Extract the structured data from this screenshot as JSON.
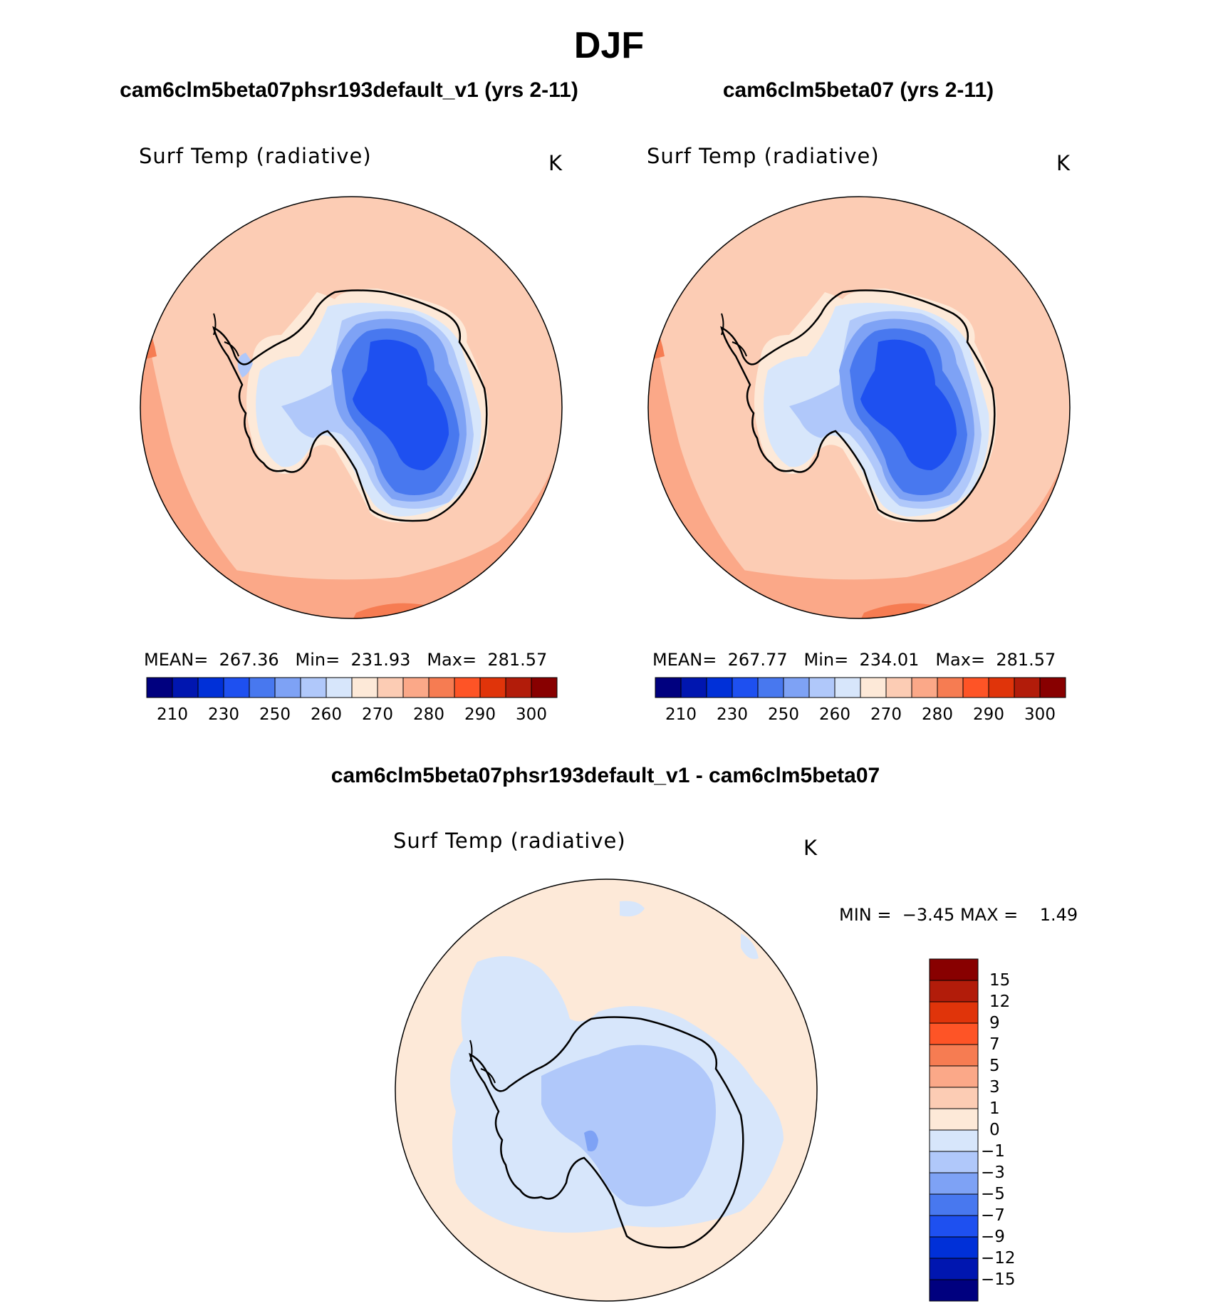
{
  "title": "DJF",
  "panels": [
    {
      "title": "cam6clm5beta07phsr193default_v1 (yrs 2-11)",
      "variable": "Surf Temp (radiative)",
      "units": "K",
      "stats": {
        "mean_label": "MEAN=",
        "mean": "267.36",
        "min_label": "Min=",
        "min": "231.93",
        "max_label": "Max=",
        "max": "281.57"
      }
    },
    {
      "title": "cam6clm5beta07 (yrs 2-11)",
      "variable": "Surf Temp (radiative)",
      "units": "K",
      "stats": {
        "mean_label": "MEAN=",
        "mean": "267.77",
        "min_label": "Min=",
        "min": "234.01",
        "max_label": "Max=",
        "max": "281.57"
      }
    }
  ],
  "diff_panel": {
    "title": "cam6clm5beta07phsr193default_v1 - cam6clm5beta07",
    "variable": "Surf Temp (radiative)",
    "units": "K",
    "stats": {
      "min_label": "MIN =",
      "min": "−3.45",
      "max_label": "MAX =",
      "max": "1.49"
    }
  },
  "colorbar_abs": {
    "colors": [
      "#00007f",
      "#0016b0",
      "#0030d8",
      "#1e50f0",
      "#4878ef",
      "#7ea2f5",
      "#b0c8fa",
      "#d7e6fb",
      "#fde9d8",
      "#fcccb4",
      "#fba888",
      "#f67c52",
      "#fe5426",
      "#e0340a",
      "#b21c0a",
      "#880000"
    ],
    "tick_labels": [
      "210",
      "230",
      "250",
      "260",
      "270",
      "280",
      "290",
      "300"
    ]
  },
  "colorbar_diff": {
    "colors": [
      "#880000",
      "#b21c0a",
      "#e0340a",
      "#fe5426",
      "#f67c52",
      "#fba888",
      "#fcccb4",
      "#fde9d8",
      "#d7e6fb",
      "#b0c8fa",
      "#7ea2f5",
      "#4878ef",
      "#1e50f0",
      "#0030d8",
      "#0016b0",
      "#00007f"
    ],
    "tick_labels": [
      "15",
      "12",
      "9",
      "7",
      "5",
      "3",
      "1",
      "0",
      "−1",
      "−3",
      "−5",
      "−7",
      "−9",
      "−12",
      "−15"
    ]
  }
}
